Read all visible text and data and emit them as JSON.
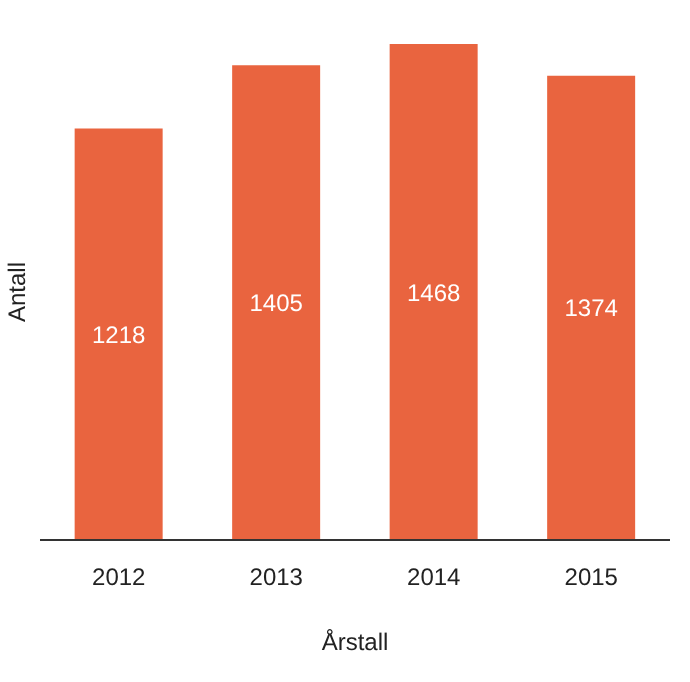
{
  "chart_data": {
    "type": "bar",
    "xlabel": "Årstall",
    "ylabel": "Antall",
    "categories": [
      "2012",
      "2013",
      "2014",
      "2015"
    ],
    "values": [
      1218,
      1405,
      1468,
      1374
    ],
    "color": "#e9643f",
    "data_labels": true
  }
}
